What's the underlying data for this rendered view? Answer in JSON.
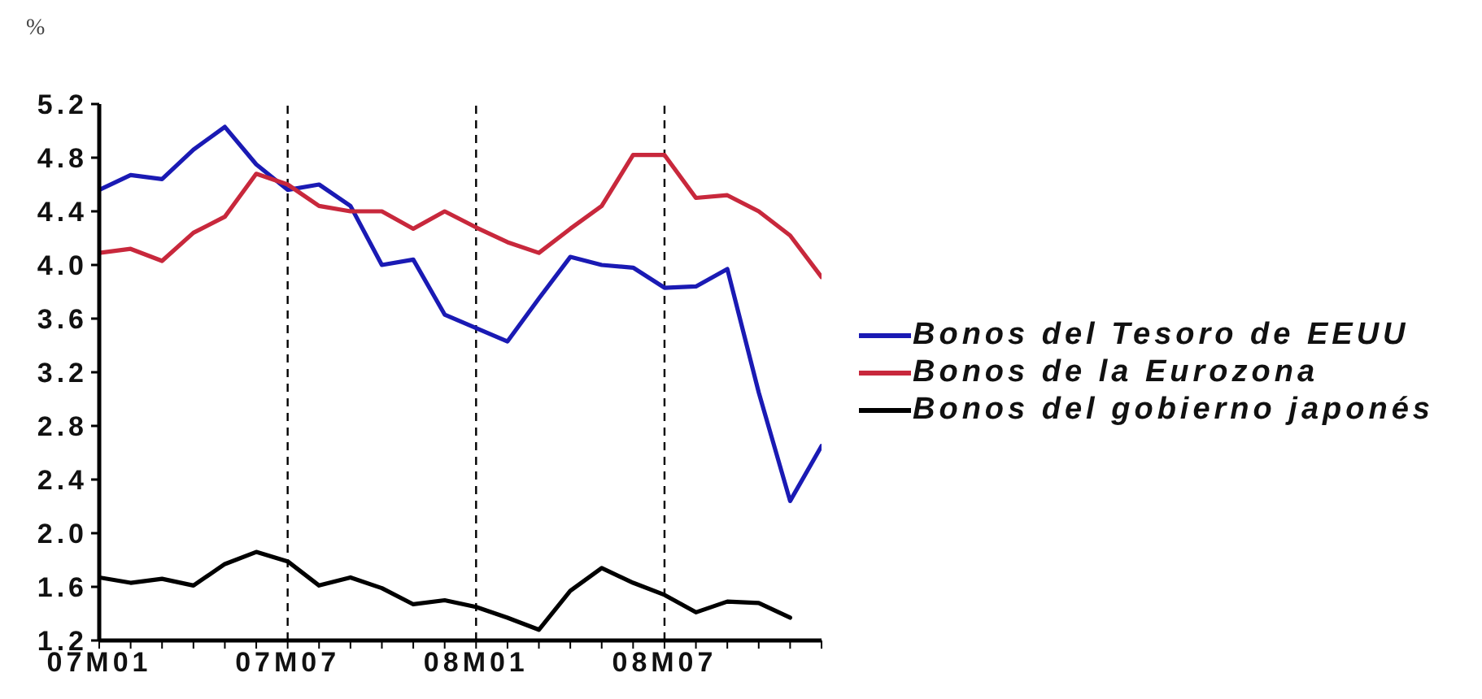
{
  "chart_data": {
    "type": "line",
    "ylabel": "%",
    "categories": [
      "07M01",
      null,
      null,
      null,
      null,
      null,
      "07M07",
      null,
      null,
      null,
      null,
      null,
      "08M01",
      null,
      null,
      null,
      null,
      null,
      "08M07",
      null,
      null,
      null,
      null,
      null
    ],
    "series": [
      {
        "name": "Bonos del Tesoro de EEUU",
        "color": "#1a1ab4",
        "values": [
          4.56,
          4.67,
          4.64,
          4.86,
          5.03,
          4.75,
          4.56,
          4.6,
          4.44,
          4.0,
          4.04,
          3.63,
          3.53,
          3.43,
          3.75,
          4.06,
          4.0,
          3.98,
          3.83,
          3.84,
          3.97,
          3.05,
          2.24,
          2.65
        ]
      },
      {
        "name": "Bonos de la Eurozona",
        "color": "#c8283c",
        "values": [
          4.09,
          4.12,
          4.03,
          4.24,
          4.36,
          4.68,
          4.6,
          4.44,
          4.4,
          4.4,
          4.27,
          4.4,
          4.28,
          4.17,
          4.09,
          4.27,
          4.44,
          4.82,
          4.82,
          4.5,
          4.52,
          4.4,
          4.22,
          3.91
        ]
      },
      {
        "name": "Bonos del gobierno japonés",
        "color": "#000000",
        "values": [
          1.67,
          1.63,
          1.66,
          1.61,
          1.77,
          1.86,
          1.79,
          1.61,
          1.67,
          1.59,
          1.47,
          1.5,
          1.45,
          1.37,
          1.28,
          1.57,
          1.74,
          1.63,
          1.54,
          1.41,
          1.49,
          1.48,
          1.37,
          null
        ]
      }
    ],
    "ylim": [
      1.2,
      5.2
    ],
    "yticks": [
      1.2,
      1.6,
      {
        "value": 2,
        "label": "2.0"
      },
      2.4,
      2.8,
      3.2,
      3.6,
      {
        "value": 4,
        "label": "4.0"
      },
      4.4,
      4.8,
      5.2
    ],
    "ref_lines": [
      {
        "axis": "x",
        "value": "07M07",
        "color": "#000000",
        "line_style": "dashed"
      },
      {
        "axis": "x",
        "value": "08M01",
        "color": "#000000",
        "line_style": "dashed"
      },
      {
        "axis": "x",
        "value": "08M07",
        "color": "#000000",
        "line_style": "dashed"
      }
    ],
    "legend": "right",
    "marker": "none",
    "line_style": "solid"
  }
}
